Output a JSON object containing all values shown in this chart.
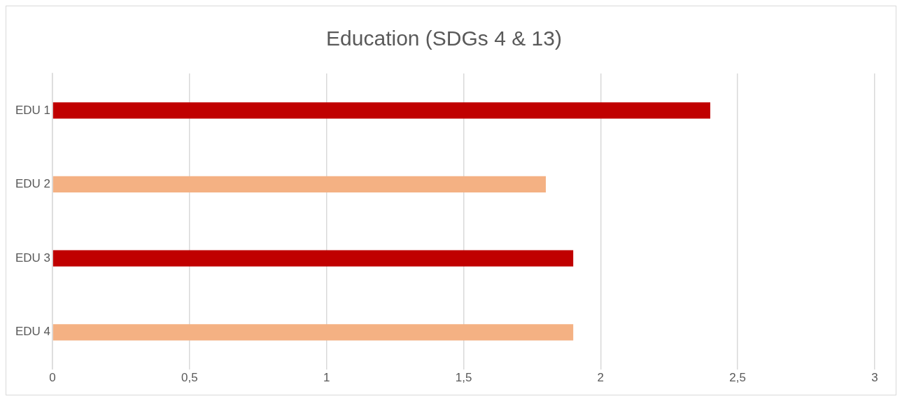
{
  "chart_data": {
    "type": "bar",
    "title": "Education (SDGs 4 & 13)",
    "orientation": "horizontal",
    "categories": [
      "EDU 1",
      "EDU 2",
      "EDU 3",
      "EDU 4"
    ],
    "values": [
      2.4,
      1.8,
      1.9,
      1.9
    ],
    "colors": [
      "#c00000",
      "#f4b183",
      "#c00000",
      "#f4b183"
    ],
    "xlim": [
      0,
      3
    ],
    "xticks": [
      0,
      {
        "value": 0.5,
        "label": "0,5"
      },
      1,
      {
        "value": 1.5,
        "label": "1,5"
      },
      2,
      {
        "value": 2.5,
        "label": "2,5"
      },
      3
    ],
    "grid": "x"
  }
}
